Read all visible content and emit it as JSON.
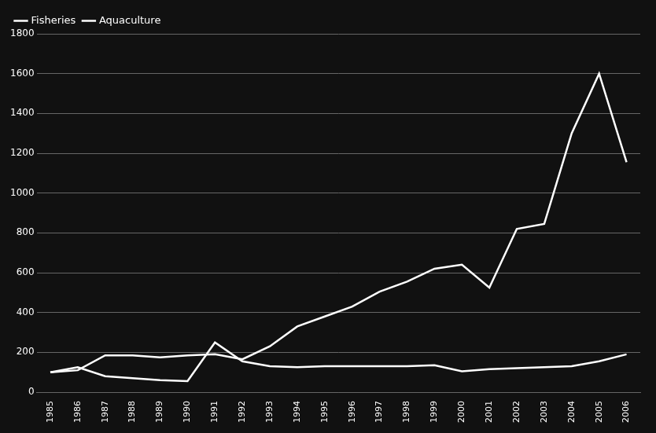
{
  "chart_data": {
    "type": "line",
    "x": [
      1985,
      1986,
      1987,
      1988,
      1989,
      1990,
      1991,
      1992,
      1993,
      1994,
      1995,
      1996,
      1997,
      1998,
      1999,
      2000,
      2001,
      2002,
      2003,
      2004,
      2005,
      2006
    ],
    "series": [
      {
        "name": "Fisheries",
        "color": "#ffffff",
        "values": [
          100,
          125,
          80,
          70,
          60,
          55,
          250,
          155,
          130,
          125,
          130,
          130,
          130,
          130,
          135,
          105,
          115,
          120,
          125,
          130,
          155,
          190
        ]
      },
      {
        "name": "Aquaculture",
        "color": "#ffffff",
        "values": [
          100,
          110,
          185,
          185,
          175,
          185,
          190,
          165,
          230,
          330,
          380,
          430,
          505,
          555,
          620,
          640,
          525,
          820,
          845,
          1300,
          1600,
          1155
        ]
      }
    ],
    "xlim": [
      1984.5,
      2006.5
    ],
    "xticks": [
      1985,
      1986,
      1987,
      1988,
      1989,
      1990,
      1991,
      1992,
      1993,
      1994,
      1995,
      1996,
      1997,
      1998,
      1999,
      2000,
      2001,
      2002,
      2003,
      2004,
      2005,
      2006
    ],
    "ylim": [
      0,
      1800
    ],
    "yticks": [
      0,
      200,
      400,
      600,
      800,
      1000,
      1200,
      1400,
      1600,
      1800
    ],
    "grid": true,
    "legend": "upper left"
  }
}
